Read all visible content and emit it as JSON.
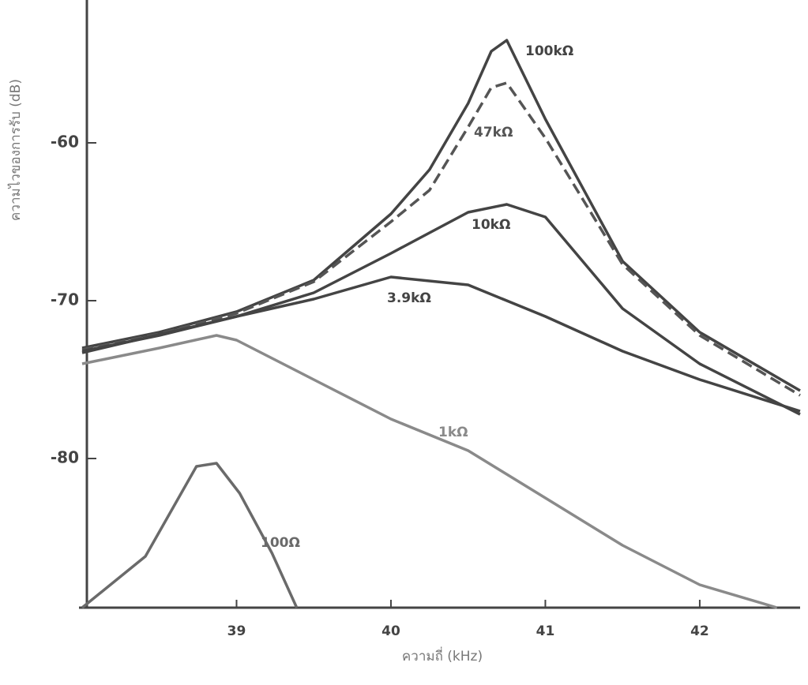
{
  "chart_data": {
    "type": "line",
    "x_label": "ความถี่ (kHz)",
    "y_label": "ความไวของการรับ (dB)",
    "xlim": [
      38,
      42.65
    ],
    "xticks": [
      39,
      40,
      41,
      42
    ],
    "ylim": [
      -89.45,
      -50.95
    ],
    "yticks": [
      -60,
      -70,
      -80
    ],
    "grid": false,
    "series": [
      {
        "name": "100kΩ",
        "color": "#444444",
        "dash": false,
        "x": [
          38,
          38.5,
          39,
          39.5,
          40,
          40.25,
          40.5,
          40.65,
          40.75,
          41,
          41.5,
          42,
          42.65
        ],
        "values": [
          -73,
          -72,
          -70.7,
          -68.7,
          -64.5,
          -61.7,
          -57.5,
          -54.2,
          -53.5,
          -58.5,
          -67.5,
          -72,
          -75.7
        ]
      },
      {
        "name": "47kΩ",
        "color": "#555555",
        "dash": true,
        "x": [
          38,
          38.5,
          39,
          39.5,
          40,
          40.25,
          40.5,
          40.65,
          40.75,
          41,
          41.5,
          42,
          42.65
        ],
        "values": [
          -73.1,
          -72.1,
          -70.8,
          -68.8,
          -65,
          -63,
          -59,
          -56.5,
          -56.2,
          -59.7,
          -67.7,
          -72.2,
          -76
        ]
      },
      {
        "name": "10kΩ",
        "color": "#444444",
        "dash": false,
        "x": [
          38,
          38.5,
          39,
          39.5,
          40,
          40.25,
          40.5,
          40.75,
          41,
          41.5,
          42,
          42.65
        ],
        "values": [
          -73.2,
          -72.2,
          -71,
          -69.5,
          -67,
          -65.7,
          -64.4,
          -63.9,
          -64.7,
          -70.5,
          -74,
          -77.2
        ]
      },
      {
        "name": "3.9kΩ",
        "color": "#444444",
        "dash": false,
        "x": [
          38,
          39,
          39.5,
          40,
          40.5,
          41,
          41.5,
          42,
          42.65
        ],
        "values": [
          -73.3,
          -71,
          -69.9,
          -68.5,
          -69,
          -71,
          -73.2,
          -75,
          -77
        ]
      },
      {
        "name": "1kΩ",
        "color": "#8a8a8a",
        "dash": false,
        "x": [
          38,
          38.5,
          38.87,
          39,
          39.5,
          40,
          40.5,
          41,
          41.5,
          42,
          42.5
        ],
        "values": [
          -74,
          -73,
          -72.2,
          -72.5,
          -75,
          -77.5,
          -79.5,
          -82.5,
          -85.5,
          -88,
          -89.45
        ]
      },
      {
        "name": "100Ω",
        "color": "#6a6a6a",
        "dash": false,
        "x": [
          38,
          38.41,
          38.74,
          38.87,
          39.02,
          39.23,
          39.39
        ],
        "values": [
          -89.45,
          -86.2,
          -80.5,
          -80.3,
          -82.2,
          -86,
          -89.45
        ]
      }
    ]
  }
}
